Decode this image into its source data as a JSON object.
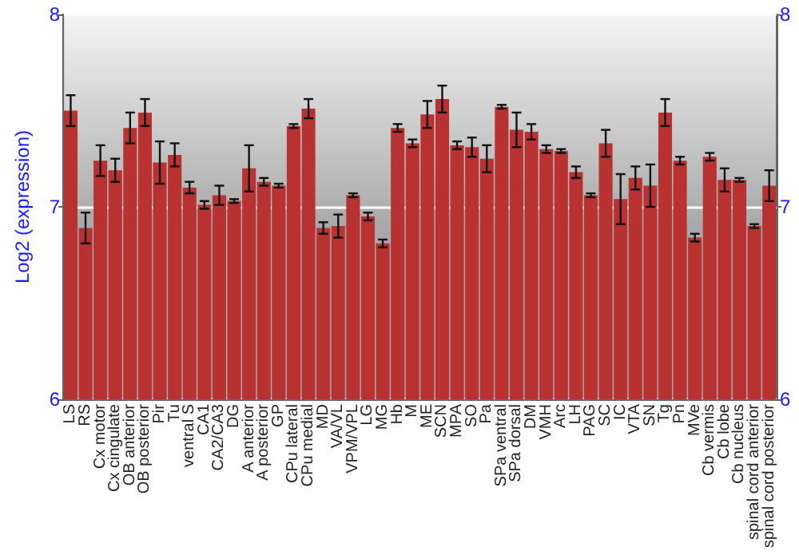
{
  "chart_data": {
    "type": "bar",
    "ylabel": "Log2 (expression)",
    "categories": [
      "LS",
      "RS",
      "Cx motor",
      "Cx cingulate",
      "OB anterior",
      "OB posterior",
      "Pir",
      "Tu",
      "ventral S",
      "CA1",
      "CA2/CA3",
      "DG",
      "A anterior",
      "A posterior",
      "GP",
      "CPu lateral",
      "CPu medial",
      "MD",
      "VA/VL",
      "VPM/VPL",
      "LG",
      "MG",
      "Hb",
      "M",
      "ME",
      "SCN",
      "MPA",
      "SO",
      "Pa",
      "SPa ventral",
      "SPa dorsal",
      "DM",
      "VMH",
      "Arc",
      "LH",
      "PAG",
      "SC",
      "IC",
      "VTA",
      "SN",
      "Tg",
      "Pn",
      "MVe",
      "Cb vermis",
      "Cb lobe",
      "Cb nucleus",
      "spinal cord anterior",
      "spinal cord posterior"
    ],
    "values": [
      7.5,
      6.89,
      7.24,
      7.19,
      7.41,
      7.49,
      7.23,
      7.27,
      7.1,
      7.01,
      7.06,
      7.03,
      7.2,
      7.13,
      7.11,
      7.42,
      7.51,
      6.89,
      6.9,
      7.06,
      6.95,
      6.81,
      7.41,
      7.33,
      7.48,
      7.56,
      7.32,
      7.31,
      7.25,
      7.52,
      7.4,
      7.39,
      7.3,
      7.29,
      7.18,
      7.06,
      7.33,
      7.04,
      7.15,
      7.11,
      7.49,
      7.24,
      6.84,
      7.26,
      7.14,
      7.14,
      6.9,
      7.11
    ],
    "errors": [
      0.08,
      0.08,
      0.08,
      0.06,
      0.08,
      0.07,
      0.11,
      0.06,
      0.03,
      0.02,
      0.05,
      0.01,
      0.12,
      0.02,
      0.01,
      0.01,
      0.05,
      0.03,
      0.06,
      0.01,
      0.02,
      0.02,
      0.02,
      0.02,
      0.07,
      0.07,
      0.02,
      0.05,
      0.07,
      0.01,
      0.09,
      0.04,
      0.02,
      0.01,
      0.03,
      0.01,
      0.07,
      0.13,
      0.06,
      0.11,
      0.07,
      0.02,
      0.02,
      0.02,
      0.06,
      0.01,
      0.01,
      0.08
    ],
    "color": "#b83232",
    "ylim": [
      6,
      8
    ],
    "yticks": [
      6,
      7,
      8
    ],
    "y2lim": [
      6,
      8
    ],
    "y2ticks": [
      6,
      7,
      8
    ],
    "grid": "y"
  }
}
